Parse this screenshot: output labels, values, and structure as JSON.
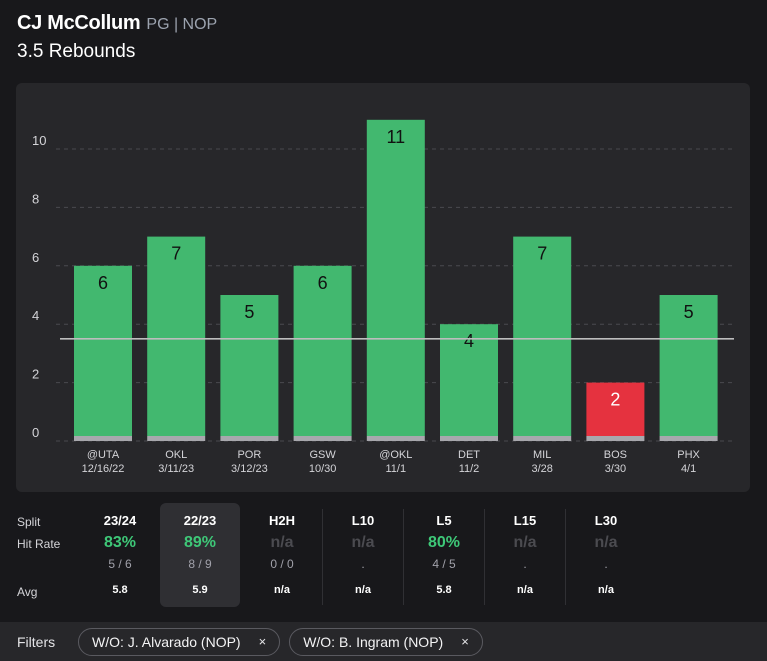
{
  "header": {
    "player_name": "CJ McCollum",
    "player_meta": "PG | NOP",
    "prop": "3.5 Rebounds"
  },
  "colors": {
    "over": "#42b86f",
    "under": "#e5323f",
    "line": "#bdbdbd"
  },
  "chart_data": {
    "type": "bar",
    "title": "3.5 Rebounds",
    "line": 3.5,
    "ylim": [
      0,
      11
    ],
    "yticks": [
      0,
      2,
      4,
      6,
      8,
      10
    ],
    "grid": true,
    "categories": [
      {
        "opp": "@UTA",
        "date": "12/16/22"
      },
      {
        "opp": "OKL",
        "date": "3/11/23"
      },
      {
        "opp": "POR",
        "date": "3/12/23"
      },
      {
        "opp": "GSW",
        "date": "10/30"
      },
      {
        "opp": "@OKL",
        "date": "11/1"
      },
      {
        "opp": "DET",
        "date": "11/2"
      },
      {
        "opp": "MIL",
        "date": "3/28"
      },
      {
        "opp": "BOS",
        "date": "3/30"
      },
      {
        "opp": "PHX",
        "date": "4/1"
      }
    ],
    "values": [
      6,
      7,
      5,
      6,
      11,
      4,
      7,
      2,
      5
    ]
  },
  "splits": {
    "row_labels": {
      "split": "Split",
      "hit_rate": "Hit Rate",
      "avg": "Avg"
    },
    "columns": [
      {
        "name": "23/24",
        "rate": "83%",
        "frac": "5 / 6",
        "avg": "5.8"
      },
      {
        "name": "22/23",
        "rate": "89%",
        "frac": "8 / 9",
        "avg": "5.9"
      },
      {
        "name": "H2H",
        "rate": "n/a",
        "frac": "0 / 0",
        "avg": "n/a"
      },
      {
        "name": "L10",
        "rate": "n/a",
        "frac": ".",
        "avg": "n/a"
      },
      {
        "name": "L5",
        "rate": "80%",
        "frac": "4 / 5",
        "avg": "5.8"
      },
      {
        "name": "L15",
        "rate": "n/a",
        "frac": ".",
        "avg": "n/a"
      },
      {
        "name": "L30",
        "rate": "n/a",
        "frac": ".",
        "avg": "n/a"
      }
    ]
  },
  "filters": {
    "label": "Filters",
    "chips": [
      {
        "label": "W/O: J. Alvarado (NOP)",
        "close": "×"
      },
      {
        "label": "W/O: B. Ingram (NOP)",
        "close": "×"
      }
    ]
  }
}
